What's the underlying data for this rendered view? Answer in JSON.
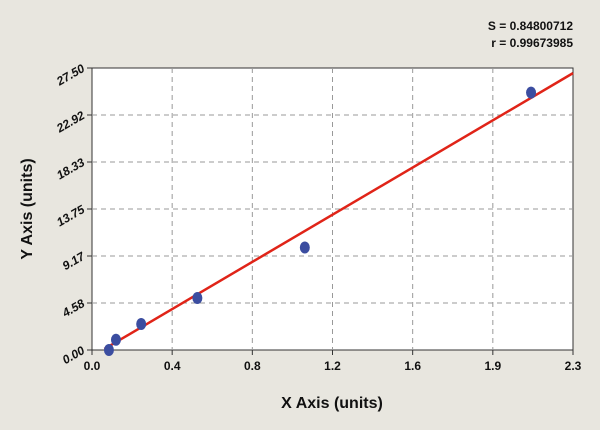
{
  "chart_data": {
    "type": "scatter",
    "x_label": "X Axis (units)",
    "y_label": "Y Axis (units)",
    "annotations": [
      "S = 0.84800712",
      "r = 0.99673985"
    ],
    "xlim": [
      0,
      2.328
    ],
    "ylim": [
      0,
      27.5
    ],
    "xticks": [
      {
        "value": 0,
        "label": "0.0"
      },
      {
        "value": 0.388,
        "label": "0.4"
      },
      {
        "value": 0.776,
        "label": "0.8"
      },
      {
        "value": 1.164,
        "label": "1.2"
      },
      {
        "value": 1.552,
        "label": "1.6"
      },
      {
        "value": 1.94,
        "label": "1.9"
      },
      {
        "value": 2.328,
        "label": "2.3"
      }
    ],
    "yticks": [
      {
        "value": 0,
        "label": "0.00"
      },
      {
        "value": 4.583,
        "label": "4.58"
      },
      {
        "value": 9.167,
        "label": "9.17"
      },
      {
        "value": 13.75,
        "label": "13.75"
      },
      {
        "value": 18.333,
        "label": "18.33"
      },
      {
        "value": 22.917,
        "label": "22.92"
      },
      {
        "value": 27.5,
        "label": "27.50"
      }
    ],
    "grid": true,
    "series": [
      {
        "color": "#3b4da0",
        "x": [
          0.082,
          0.116,
          0.238,
          0.51,
          1.03,
          2.125
        ],
        "values": [
          0,
          1.0,
          2.54,
          5.07,
          10.0,
          25.1
        ]
      }
    ],
    "fit_line": {
      "color": "#e02418",
      "x": [
        0.06,
        2.328
      ],
      "values": [
        0.1,
        27.0
      ]
    }
  }
}
